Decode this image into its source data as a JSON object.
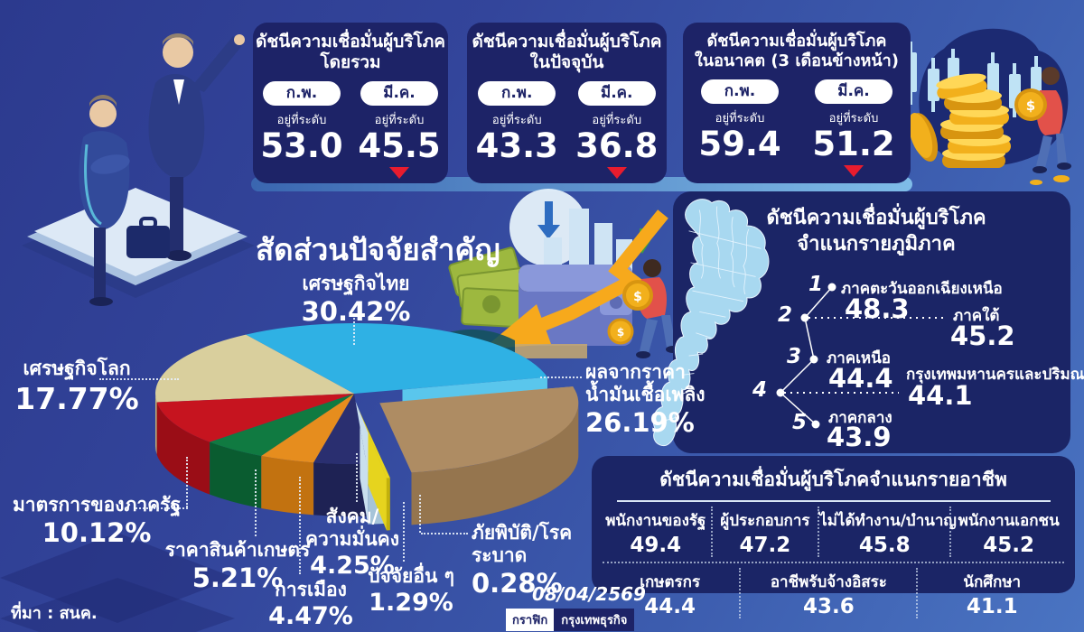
{
  "top_panels": [
    {
      "title_line1": "ดัชนีความเชื่อมั่นผู้บริโภค",
      "title_line2": "โดยรวม",
      "months": [
        {
          "label": "ก.พ.",
          "sub": "อยู่ที่ระดับ",
          "value": "53.0",
          "trend": "flat"
        },
        {
          "label": "มี.ค.",
          "sub": "อยู่ที่ระดับ",
          "value": "45.5",
          "trend": "down"
        }
      ]
    },
    {
      "title_line1": "ดัชนีความเชื่อมั่นผู้บริโภค",
      "title_line2": "ในปัจจุบัน",
      "months": [
        {
          "label": "ก.พ.",
          "sub": "อยู่ที่ระดับ",
          "value": "43.3",
          "trend": "flat"
        },
        {
          "label": "มี.ค.",
          "sub": "อยู่ที่ระดับ",
          "value": "36.8",
          "trend": "down"
        }
      ]
    },
    {
      "title_line1": "ดัชนีความเชื่อมั่นผู้บริโภค",
      "title_line2": "ในอนาคต (3 เดือนข้างหน้า)",
      "months": [
        {
          "label": "ก.พ.",
          "sub": "อยู่ที่ระดับ",
          "value": "59.4",
          "trend": "flat"
        },
        {
          "label": "มี.ค.",
          "sub": "อยู่ที่ระดับ",
          "value": "51.2",
          "trend": "down"
        }
      ]
    }
  ],
  "chart_data": {
    "type": "pie",
    "title": "สัดส่วนปัจจัยสำคัญ",
    "style": "3d-exploded",
    "start_angle": -33,
    "slices": [
      {
        "label": "เศรษฐกิจไทย",
        "value": 30.42,
        "pct": "30.42%",
        "color": "#2fb1e4",
        "side": "#1b96c8",
        "explode": 0
      },
      {
        "label": "ผลจากราคาน้ำมันเชื้อเพลิง",
        "label1": "ผลจากราคา",
        "label2": "น้ำมันเชื้อเพลิง",
        "value": 26.19,
        "pct": "26.19%",
        "color": "#ae8c63",
        "side": "#95754e",
        "explode": 34
      },
      {
        "label": "ภัยพิบัติ/โรคระบาด",
        "value": 0.28,
        "pct": "0.28%",
        "color": "#e6d41e",
        "side": "#c2b10c",
        "explode": 30
      },
      {
        "label": "ปัจจัยอื่น ๆ",
        "value": 1.29,
        "pct": "1.29%",
        "color": "#c9dfee",
        "side": "#a6c4d9",
        "explode": 16
      },
      {
        "label": "สังคม/ความมั่นคง",
        "label1": "สังคม/",
        "label2": "ความมั่นคง",
        "value": 4.25,
        "pct": "4.25%",
        "color": "#2a2f70",
        "side": "#1e2254",
        "explode": 0
      },
      {
        "label": "การเมือง",
        "value": 4.47,
        "pct": "4.47%",
        "color": "#e68d1e",
        "side": "#c27210",
        "explode": 0
      },
      {
        "label": "ราคาสินค้าเกษตร",
        "value": 5.21,
        "pct": "5.21%",
        "color": "#107a41",
        "side": "#0a5c30",
        "explode": 0
      },
      {
        "label": "มาตรการของภาครัฐ",
        "value": 10.12,
        "pct": "10.12%",
        "color": "#c6141f",
        "side": "#9a0d16",
        "explode": 0
      },
      {
        "label": "เศรษฐกิจโลก",
        "value": 17.77,
        "pct": "17.77%",
        "color": "#d9cf9d",
        "side": "#bfb177",
        "explode": 0
      }
    ]
  },
  "regions": {
    "title_line1": "ดัชนีความเชื่อมั่นผู้บริโภค",
    "title_line2": "จำแนกรายภูมิภาค",
    "items": [
      {
        "rank": "1",
        "name": "ภาคตะวันออกเฉียงเหนือ",
        "value": "48.3"
      },
      {
        "rank": "2",
        "name": "ภาคใต้",
        "value": "45.2"
      },
      {
        "rank": "3",
        "name": "ภาคเหนือ",
        "value": "44.4"
      },
      {
        "rank": "4",
        "name": "กรุงเทพมหานครและปริมณฑล",
        "value": "44.1"
      },
      {
        "rank": "5",
        "name": "ภาคกลาง",
        "value": "43.9"
      }
    ]
  },
  "occupations": {
    "title": "ดัชนีความเชื่อมั่นผู้บริโภคจำแนกรายอาชีพ",
    "row1": [
      {
        "label": "พนักงานของรัฐ",
        "value": "49.4"
      },
      {
        "label": "ผู้ประกอบการ",
        "value": "47.2"
      },
      {
        "label": "ไม่ได้ทำงาน/บำนาญ",
        "value": "45.8"
      },
      {
        "label": "พนักงานเอกชน",
        "value": "45.2"
      }
    ],
    "row2": [
      {
        "label": "เกษตรกร",
        "value": "44.4"
      },
      {
        "label": "อาชีพรับจ้างอิสระ",
        "value": "43.6"
      },
      {
        "label": "นักศึกษา",
        "value": "41.1"
      }
    ]
  },
  "footer": {
    "source": "ที่มา : สนค.",
    "date": "08/04/2569",
    "logo_left": "กราฟิก",
    "logo_right": "กรุงเทพธุรกิจ"
  },
  "colors": {
    "panel_navy": "#1d2367",
    "alert_red": "#e81c2e",
    "map_fill": "#a8d8f0",
    "coin_gold": "#f2b01c"
  }
}
